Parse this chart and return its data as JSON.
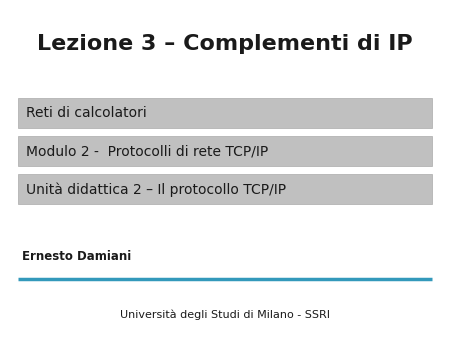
{
  "title": "Lezione 3 – Complementi di IP",
  "title_fontsize": 16,
  "title_fontweight": "bold",
  "title_color": "#1a1a1a",
  "boxes": [
    {
      "text": "Reti di calcolatori",
      "bg_color": "#c0c0c0",
      "fontsize": 10,
      "text_color": "#1a1a1a"
    },
    {
      "text": "Modulo 2 -  Protocolli di rete TCP/IP",
      "bg_color": "#c0c0c0",
      "fontsize": 10,
      "text_color": "#1a1a1a"
    },
    {
      "text": "Unità didattica 2 – Il protocollo TCP/IP",
      "bg_color": "#c0c0c0",
      "fontsize": 10,
      "text_color": "#1a1a1a"
    }
  ],
  "author_text": "Ernesto Damiani",
  "author_fontsize": 8.5,
  "author_fontweight": "bold",
  "line_color": "#3399bb",
  "footer_text": "Università degli Studi di Milano - SSRI",
  "footer_fontsize": 8,
  "bg_color": "#ffffff"
}
